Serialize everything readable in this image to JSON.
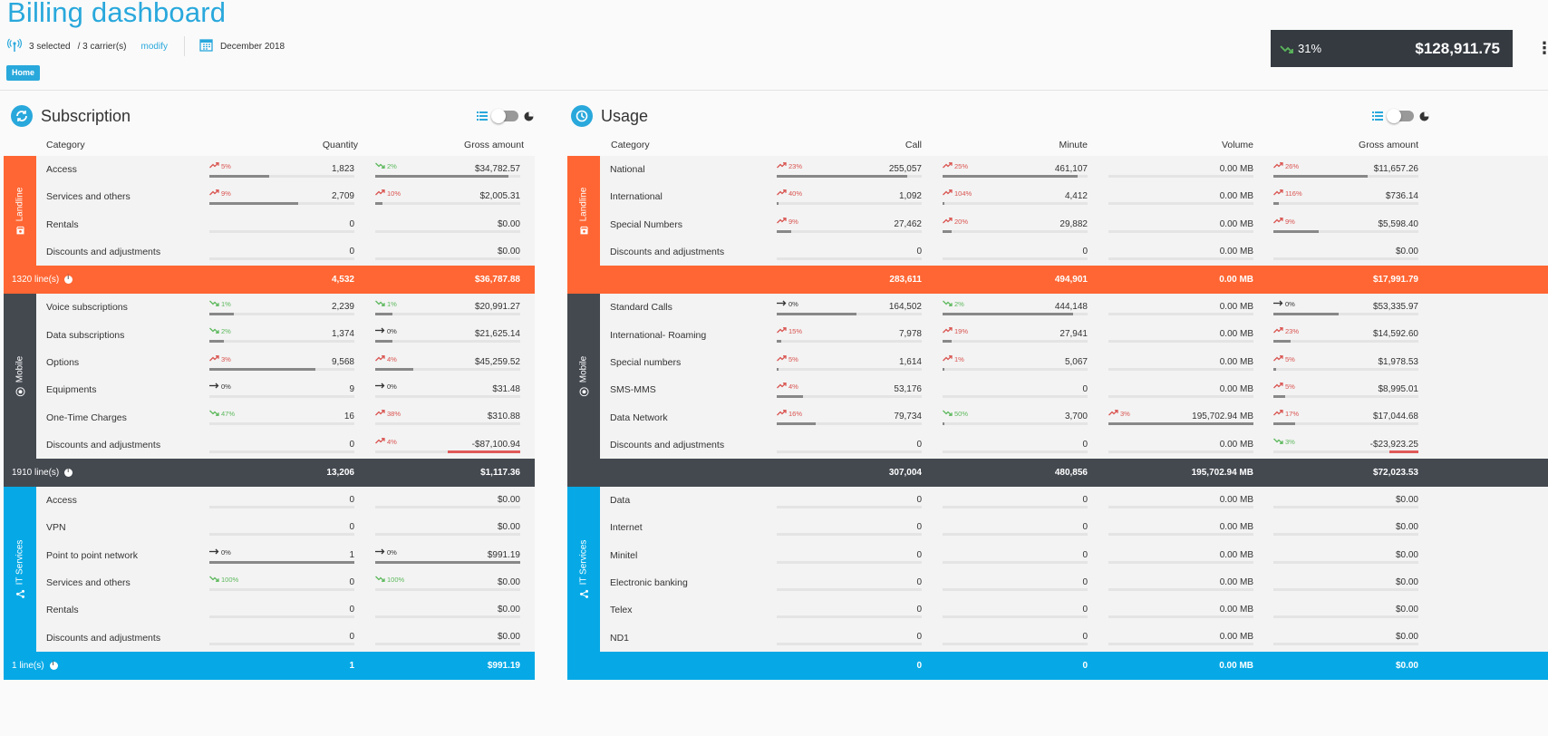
{
  "header": {
    "title": "Billing dashboard",
    "carriers_selected": "3 selected",
    "carriers_total": "/ 3 carrier(s)",
    "modify_label": "modify",
    "period": "December 2018",
    "home_label": "Home",
    "total_trend": "31%",
    "total_amount": "$128,911.75"
  },
  "subscription": {
    "title": "Subscription",
    "columns": {
      "category": "Category",
      "quantity": "Quantity",
      "gross": "Gross amount"
    },
    "groups": [
      {
        "label": "Landline",
        "color": "orange",
        "rows": [
          {
            "cat": "Access",
            "q": {
              "t": "5%",
              "d": "up",
              "v": "1,823",
              "b": 0.41
            },
            "g": {
              "t": "2%",
              "d": "dn",
              "v": "$34,782.57",
              "b": 0.92
            }
          },
          {
            "cat": "Services and others",
            "q": {
              "t": "9%",
              "d": "up",
              "v": "2,709",
              "b": 0.61
            },
            "g": {
              "t": "10%",
              "d": "up",
              "v": "$2,005.31",
              "b": 0.05
            }
          },
          {
            "cat": "Rentals",
            "q": {
              "t": "",
              "d": "",
              "v": "0",
              "b": 0
            },
            "g": {
              "t": "",
              "d": "",
              "v": "$0.00",
              "b": 0
            }
          },
          {
            "cat": "Discounts and adjustments",
            "q": {
              "t": "",
              "d": "",
              "v": "0",
              "b": 0
            },
            "g": {
              "t": "",
              "d": "",
              "v": "$0.00",
              "b": 0
            }
          }
        ],
        "summary": {
          "label": "1320 line(s)",
          "q": "4,532",
          "g": "$36,787.88"
        }
      },
      {
        "label": "Mobile",
        "color": "dark",
        "rows": [
          {
            "cat": "Voice subscriptions",
            "q": {
              "t": "1%",
              "d": "dn",
              "v": "2,239",
              "b": 0.17
            },
            "g": {
              "t": "1%",
              "d": "dn",
              "v": "$20,991.27",
              "b": 0.12
            }
          },
          {
            "cat": "Data subscriptions",
            "q": {
              "t": "2%",
              "d": "dn",
              "v": "1,374",
              "b": 0.1
            },
            "g": {
              "t": "0%",
              "d": "fl",
              "v": "$21,625.14",
              "b": 0.12
            }
          },
          {
            "cat": "Options",
            "q": {
              "t": "3%",
              "d": "up",
              "v": "9,568",
              "b": 0.73
            },
            "g": {
              "t": "4%",
              "d": "up",
              "v": "$45,259.52",
              "b": 0.26
            }
          },
          {
            "cat": "Equipments",
            "q": {
              "t": "0%",
              "d": "fl",
              "v": "9",
              "b": 0
            },
            "g": {
              "t": "0%",
              "d": "fl",
              "v": "$31.48",
              "b": 0
            }
          },
          {
            "cat": "One-Time Charges",
            "q": {
              "t": "47%",
              "d": "dn",
              "v": "16",
              "b": 0
            },
            "g": {
              "t": "38%",
              "d": "up",
              "v": "$310.88",
              "b": 0
            }
          },
          {
            "cat": "Discounts and adjustments",
            "q": {
              "t": "",
              "d": "",
              "v": "0",
              "b": 0
            },
            "g": {
              "t": "4%",
              "d": "up",
              "v": "-$87,100.94",
              "b": -0.5
            }
          }
        ],
        "summary": {
          "label": "1910 line(s)",
          "q": "13,206",
          "g": "$1,117.36"
        }
      },
      {
        "label": "IT Services",
        "color": "blue",
        "rows": [
          {
            "cat": "Access",
            "q": {
              "t": "",
              "d": "",
              "v": "0",
              "b": 0
            },
            "g": {
              "t": "",
              "d": "",
              "v": "$0.00",
              "b": 0
            }
          },
          {
            "cat": "VPN",
            "q": {
              "t": "",
              "d": "",
              "v": "0",
              "b": 0
            },
            "g": {
              "t": "",
              "d": "",
              "v": "$0.00",
              "b": 0
            }
          },
          {
            "cat": "Point to point network",
            "q": {
              "t": "0%",
              "d": "fl",
              "v": "1",
              "b": 1
            },
            "g": {
              "t": "0%",
              "d": "fl",
              "v": "$991.19",
              "b": 1
            }
          },
          {
            "cat": "Services and others",
            "q": {
              "t": "100%",
              "d": "dn",
              "v": "0",
              "b": 0
            },
            "g": {
              "t": "100%",
              "d": "dn",
              "v": "$0.00",
              "b": 0
            }
          },
          {
            "cat": "Rentals",
            "q": {
              "t": "",
              "d": "",
              "v": "0",
              "b": 0
            },
            "g": {
              "t": "",
              "d": "",
              "v": "$0.00",
              "b": 0
            }
          },
          {
            "cat": "Discounts and adjustments",
            "q": {
              "t": "",
              "d": "",
              "v": "0",
              "b": 0
            },
            "g": {
              "t": "",
              "d": "",
              "v": "$0.00",
              "b": 0
            }
          }
        ],
        "summary": {
          "label": "1 line(s)",
          "q": "1",
          "g": "$991.19"
        }
      }
    ]
  },
  "usage": {
    "title": "Usage",
    "columns": {
      "category": "Category",
      "call": "Call",
      "minute": "Minute",
      "volume": "Volume",
      "gross": "Gross amount"
    },
    "groups": [
      {
        "label": "Landline",
        "color": "orange",
        "rows": [
          {
            "cat": "National",
            "c": {
              "t": "23%",
              "d": "up",
              "v": "255,057",
              "b": 0.9
            },
            "m": {
              "t": "25%",
              "d": "up",
              "v": "461,107",
              "b": 0.93
            },
            "vol": {
              "t": "",
              "d": "",
              "v": "0.00 MB",
              "b": 0
            },
            "g": {
              "t": "26%",
              "d": "up",
              "v": "$11,657.26",
              "b": 0.65
            }
          },
          {
            "cat": "International",
            "c": {
              "t": "40%",
              "d": "up",
              "v": "1,092",
              "b": 0.005
            },
            "m": {
              "t": "104%",
              "d": "up",
              "v": "4,412",
              "b": 0.01
            },
            "vol": {
              "t": "",
              "d": "",
              "v": "0.00 MB",
              "b": 0
            },
            "g": {
              "t": "116%",
              "d": "up",
              "v": "$736.14",
              "b": 0.04
            }
          },
          {
            "cat": "Special Numbers",
            "c": {
              "t": "9%",
              "d": "up",
              "v": "27,462",
              "b": 0.1
            },
            "m": {
              "t": "20%",
              "d": "up",
              "v": "29,882",
              "b": 0.06
            },
            "vol": {
              "t": "",
              "d": "",
              "v": "0.00 MB",
              "b": 0
            },
            "g": {
              "t": "9%",
              "d": "up",
              "v": "$5,598.40",
              "b": 0.31
            }
          },
          {
            "cat": "Discounts and adjustments",
            "c": {
              "t": "",
              "d": "",
              "v": "0",
              "b": 0
            },
            "m": {
              "t": "",
              "d": "",
              "v": "0",
              "b": 0
            },
            "vol": {
              "t": "",
              "d": "",
              "v": "0.00 MB",
              "b": 0
            },
            "g": {
              "t": "",
              "d": "",
              "v": "$0.00",
              "b": 0
            }
          }
        ],
        "summary": {
          "label": "",
          "c": "283,611",
          "m": "494,901",
          "vol": "0.00 MB",
          "g": "$17,991.79"
        }
      },
      {
        "label": "Mobile",
        "color": "dark",
        "rows": [
          {
            "cat": "Standard Calls",
            "c": {
              "t": "0%",
              "d": "fl",
              "v": "164,502",
              "b": 0.55
            },
            "m": {
              "t": "2%",
              "d": "dn",
              "v": "444,148",
              "b": 0.9
            },
            "vol": {
              "t": "",
              "d": "",
              "v": "0.00 MB",
              "b": 0
            },
            "g": {
              "t": "0%",
              "d": "fl",
              "v": "$53,335.97",
              "b": 0.45
            }
          },
          {
            "cat": "International- Roaming",
            "c": {
              "t": "15%",
              "d": "up",
              "v": "7,978",
              "b": 0.03
            },
            "m": {
              "t": "19%",
              "d": "up",
              "v": "27,941",
              "b": 0.06
            },
            "vol": {
              "t": "",
              "d": "",
              "v": "0.00 MB",
              "b": 0
            },
            "g": {
              "t": "23%",
              "d": "up",
              "v": "$14,592.60",
              "b": 0.12
            }
          },
          {
            "cat": "Special numbers",
            "c": {
              "t": "5%",
              "d": "up",
              "v": "1,614",
              "b": 0.005
            },
            "m": {
              "t": "1%",
              "d": "up",
              "v": "5,067",
              "b": 0.01
            },
            "vol": {
              "t": "",
              "d": "",
              "v": "0.00 MB",
              "b": 0
            },
            "g": {
              "t": "5%",
              "d": "up",
              "v": "$1,978.53",
              "b": 0.02
            }
          },
          {
            "cat": "SMS-MMS",
            "c": {
              "t": "4%",
              "d": "up",
              "v": "53,176",
              "b": 0.18
            },
            "m": {
              "t": "",
              "d": "",
              "v": "0",
              "b": 0
            },
            "vol": {
              "t": "",
              "d": "",
              "v": "0.00 MB",
              "b": 0
            },
            "g": {
              "t": "5%",
              "d": "up",
              "v": "$8,995.01",
              "b": 0.08
            }
          },
          {
            "cat": "Data Network",
            "c": {
              "t": "16%",
              "d": "up",
              "v": "79,734",
              "b": 0.27
            },
            "m": {
              "t": "50%",
              "d": "dn",
              "v": "3,700",
              "b": 0.005
            },
            "vol": {
              "t": "3%",
              "d": "up",
              "v": "195,702.94 MB",
              "b": 1
            },
            "g": {
              "t": "17%",
              "d": "up",
              "v": "$17,044.68",
              "b": 0.15
            }
          },
          {
            "cat": "Discounts and adjustments",
            "c": {
              "t": "",
              "d": "",
              "v": "0",
              "b": 0
            },
            "m": {
              "t": "",
              "d": "",
              "v": "0",
              "b": 0
            },
            "vol": {
              "t": "",
              "d": "",
              "v": "0.00 MB",
              "b": 0
            },
            "g": {
              "t": "3%",
              "d": "dn",
              "v": "-$23,923.25",
              "b": -0.2
            }
          }
        ],
        "summary": {
          "label": "",
          "c": "307,004",
          "m": "480,856",
          "vol": "195,702.94 MB",
          "g": "$72,023.53"
        }
      },
      {
        "label": "IT Services",
        "color": "blue",
        "rows": [
          {
            "cat": "Data",
            "c": {
              "t": "",
              "d": "",
              "v": "0",
              "b": 0
            },
            "m": {
              "t": "",
              "d": "",
              "v": "0",
              "b": 0
            },
            "vol": {
              "t": "",
              "d": "",
              "v": "0.00 MB",
              "b": 0
            },
            "g": {
              "t": "",
              "d": "",
              "v": "$0.00",
              "b": 0
            }
          },
          {
            "cat": "Internet",
            "c": {
              "t": "",
              "d": "",
              "v": "0",
              "b": 0
            },
            "m": {
              "t": "",
              "d": "",
              "v": "0",
              "b": 0
            },
            "vol": {
              "t": "",
              "d": "",
              "v": "0.00 MB",
              "b": 0
            },
            "g": {
              "t": "",
              "d": "",
              "v": "$0.00",
              "b": 0
            }
          },
          {
            "cat": "Minitel",
            "c": {
              "t": "",
              "d": "",
              "v": "0",
              "b": 0
            },
            "m": {
              "t": "",
              "d": "",
              "v": "0",
              "b": 0
            },
            "vol": {
              "t": "",
              "d": "",
              "v": "0.00 MB",
              "b": 0
            },
            "g": {
              "t": "",
              "d": "",
              "v": "$0.00",
              "b": 0
            }
          },
          {
            "cat": "Electronic banking",
            "c": {
              "t": "",
              "d": "",
              "v": "0",
              "b": 0
            },
            "m": {
              "t": "",
              "d": "",
              "v": "0",
              "b": 0
            },
            "vol": {
              "t": "",
              "d": "",
              "v": "0.00 MB",
              "b": 0
            },
            "g": {
              "t": "",
              "d": "",
              "v": "$0.00",
              "b": 0
            }
          },
          {
            "cat": "Telex",
            "c": {
              "t": "",
              "d": "",
              "v": "0",
              "b": 0
            },
            "m": {
              "t": "",
              "d": "",
              "v": "0",
              "b": 0
            },
            "vol": {
              "t": "",
              "d": "",
              "v": "0.00 MB",
              "b": 0
            },
            "g": {
              "t": "",
              "d": "",
              "v": "$0.00",
              "b": 0
            }
          },
          {
            "cat": "ND1",
            "c": {
              "t": "",
              "d": "",
              "v": "0",
              "b": 0
            },
            "m": {
              "t": "",
              "d": "",
              "v": "0",
              "b": 0
            },
            "vol": {
              "t": "",
              "d": "",
              "v": "0.00 MB",
              "b": 0
            },
            "g": {
              "t": "",
              "d": "",
              "v": "$0.00",
              "b": 0
            }
          }
        ],
        "summary": {
          "label": "",
          "c": "0",
          "m": "0",
          "vol": "0.00 MB",
          "g": "$0.00"
        }
      }
    ]
  },
  "colors": {
    "accent": "#29a8dc",
    "landline": "#ff6633",
    "mobile": "#444950",
    "it_services": "#06a9e6",
    "trend_up": "#d9534f",
    "trend_down": "#5cb85c"
  }
}
